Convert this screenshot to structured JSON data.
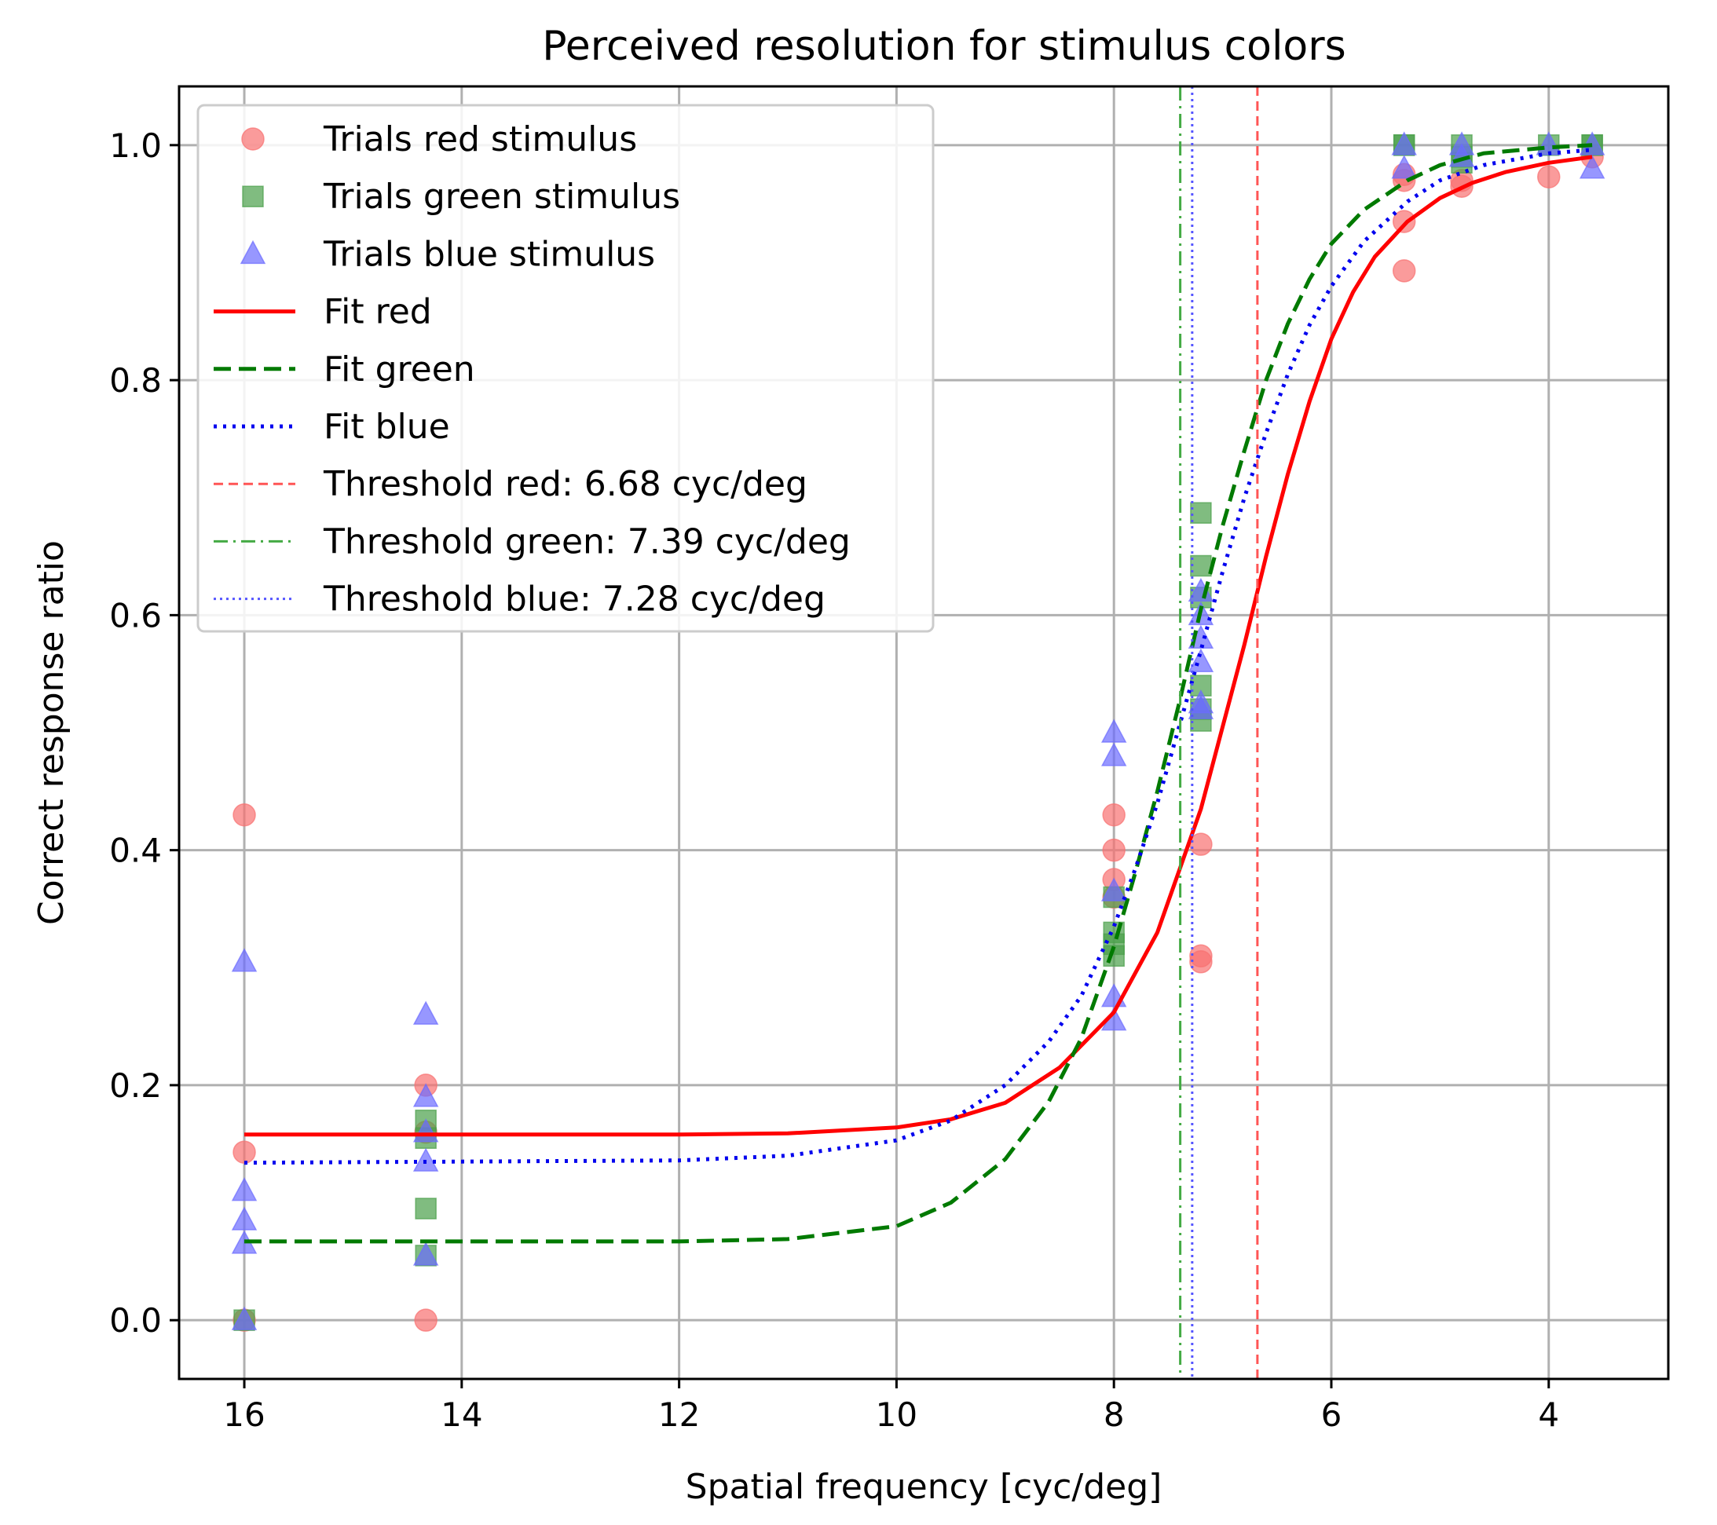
{
  "chart_data": {
    "type": "scatter",
    "title": "Perceived resolution for stimulus colors",
    "xlabel": "Spatial frequency [cyc/deg]",
    "ylabel": "Correct response ratio",
    "xlim": [
      16.6,
      2.9
    ],
    "ylim": [
      -0.05,
      1.05
    ],
    "x_inverted": true,
    "grid": true,
    "legend_position": "upper left",
    "xticks": [
      16,
      14,
      12,
      10,
      8,
      6,
      4
    ],
    "yticks": [
      0.0,
      0.2,
      0.4,
      0.6,
      0.8,
      1.0
    ],
    "xtick_labels": [
      "16",
      "14",
      "12",
      "10",
      "8",
      "6",
      "4"
    ],
    "ytick_labels": [
      "0.0",
      "0.2",
      "0.4",
      "0.6",
      "0.8",
      "1.0"
    ],
    "colors": {
      "red_points": "#f87171",
      "green_points": "#4aa04a",
      "blue_points": "#6b6bff",
      "fit_red": "#ff0000",
      "fit_green": "#007a00",
      "fit_blue": "#0000ee",
      "threshold_red": "#ff5555",
      "threshold_green": "#44aa44",
      "threshold_blue": "#5555ff"
    },
    "series": [
      {
        "name": "Trials red stimulus",
        "kind": "scatter",
        "marker": "circle",
        "color_key": "red_points",
        "x": [
          16,
          16,
          16,
          14.33,
          14.33,
          14.33,
          8,
          8,
          8,
          8,
          7.2,
          7.2,
          7.2,
          5.33,
          5.33,
          5.33,
          5.33,
          4.8,
          4.8,
          4,
          3.6
        ],
        "y": [
          0.43,
          0.143,
          0.0,
          0.2,
          0.0,
          0.16,
          0.43,
          0.4,
          0.375,
          0.36,
          0.405,
          0.31,
          0.305,
          0.97,
          0.935,
          0.893,
          0.975,
          0.965,
          0.97,
          0.973,
          0.99
        ]
      },
      {
        "name": "Trials green stimulus",
        "kind": "scatter",
        "marker": "square",
        "color_key": "green_points",
        "x": [
          16,
          14.33,
          14.33,
          14.33,
          14.33,
          8,
          8,
          8,
          8,
          7.2,
          7.2,
          7.2,
          7.2,
          7.2,
          7.2,
          5.33,
          5.33,
          4.8,
          4.8,
          4.8,
          4,
          3.6,
          3.6
        ],
        "y": [
          0.0,
          0.17,
          0.155,
          0.095,
          0.055,
          0.36,
          0.33,
          0.32,
          0.31,
          0.687,
          0.642,
          0.615,
          0.54,
          0.52,
          0.51,
          1.0,
          1.0,
          1.0,
          0.99,
          0.985,
          1.0,
          1.0,
          1.0
        ]
      },
      {
        "name": "Trials blue stimulus",
        "kind": "scatter",
        "marker": "triangle",
        "color_key": "blue_points",
        "x": [
          16,
          16,
          16,
          16,
          16,
          14.33,
          14.33,
          14.33,
          14.33,
          14.33,
          8,
          8,
          8,
          8,
          8,
          7.2,
          7.2,
          7.2,
          7.2,
          7.2,
          7.2,
          5.33,
          5.33,
          4.8,
          4.8,
          4,
          3.6,
          3.6
        ],
        "y": [
          0.305,
          0.11,
          0.085,
          0.065,
          0.0,
          0.26,
          0.19,
          0.16,
          0.135,
          0.055,
          0.5,
          0.48,
          0.365,
          0.275,
          0.255,
          0.62,
          0.6,
          0.58,
          0.56,
          0.525,
          0.52,
          1.0,
          0.98,
          1.0,
          0.99,
          1.0,
          1.0,
          0.98
        ]
      },
      {
        "name": "Fit red",
        "kind": "line",
        "style": "solid",
        "color_key": "fit_red",
        "x": [
          16,
          14,
          12,
          11,
          10,
          9.5,
          9,
          8.5,
          8,
          7.6,
          7.2,
          7.0,
          6.8,
          6.6,
          6.4,
          6.2,
          6.0,
          5.8,
          5.6,
          5.3,
          5.0,
          4.7,
          4.4,
          4.0,
          3.6
        ],
        "y": [
          0.158,
          0.158,
          0.158,
          0.159,
          0.164,
          0.171,
          0.185,
          0.215,
          0.262,
          0.33,
          0.435,
          0.505,
          0.575,
          0.65,
          0.72,
          0.782,
          0.835,
          0.875,
          0.905,
          0.935,
          0.955,
          0.968,
          0.977,
          0.985,
          0.99
        ]
      },
      {
        "name": "Fit green",
        "kind": "line",
        "style": "dashed",
        "color_key": "fit_green",
        "x": [
          16,
          14,
          12,
          11,
          10,
          9.5,
          9,
          8.6,
          8.3,
          8.0,
          7.8,
          7.6,
          7.4,
          7.2,
          7.0,
          6.8,
          6.6,
          6.4,
          6.2,
          6.0,
          5.7,
          5.3,
          5.0,
          4.6,
          4.0,
          3.6
        ],
        "y": [
          0.067,
          0.067,
          0.067,
          0.069,
          0.08,
          0.1,
          0.137,
          0.186,
          0.24,
          0.318,
          0.382,
          0.45,
          0.525,
          0.605,
          0.676,
          0.74,
          0.8,
          0.848,
          0.886,
          0.916,
          0.945,
          0.97,
          0.983,
          0.993,
          0.998,
          1.0
        ]
      },
      {
        "name": "Fit blue",
        "kind": "line",
        "style": "dotted",
        "color_key": "fit_blue",
        "x": [
          16,
          14,
          12,
          11,
          10,
          9.5,
          9,
          8.6,
          8.3,
          8.0,
          7.8,
          7.6,
          7.4,
          7.2,
          7.0,
          6.8,
          6.6,
          6.4,
          6.2,
          6.0,
          5.7,
          5.3,
          5.0,
          4.6,
          4.0,
          3.6
        ],
        "y": [
          0.134,
          0.135,
          0.136,
          0.14,
          0.153,
          0.17,
          0.2,
          0.237,
          0.276,
          0.335,
          0.385,
          0.44,
          0.505,
          0.57,
          0.637,
          0.7,
          0.755,
          0.805,
          0.847,
          0.88,
          0.918,
          0.952,
          0.97,
          0.983,
          0.993,
          0.996
        ]
      },
      {
        "name": "Threshold red: 6.68 cyc/deg",
        "kind": "vline",
        "style": "dashed",
        "color_key": "threshold_red",
        "value": 6.68
      },
      {
        "name": "Threshold green: 7.39 cyc/deg",
        "kind": "vline",
        "style": "dashdot",
        "color_key": "threshold_green",
        "value": 7.39
      },
      {
        "name": "Threshold blue: 7.28 cyc/deg",
        "kind": "vline",
        "style": "dotted",
        "color_key": "threshold_blue",
        "value": 7.28
      }
    ]
  }
}
